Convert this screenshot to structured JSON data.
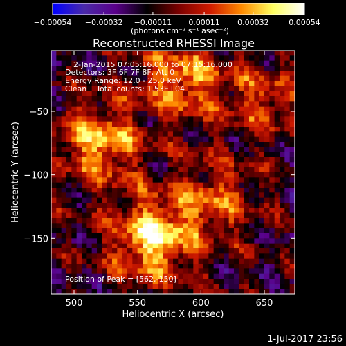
{
  "chart_data": {
    "type": "heatmap",
    "title": "Reconstructed RHESSI Image",
    "xlabel": "Heliocentric X (arcsec)",
    "ylabel": "Heliocentric Y (arcsec)",
    "xlim": [
      482,
      674
    ],
    "ylim": [
      -194,
      -2
    ],
    "x_ticks": [
      500,
      550,
      600,
      650
    ],
    "x_tick_labels": [
      "500",
      "550",
      "600",
      "650"
    ],
    "y_ticks": [
      -50,
      -100,
      -150
    ],
    "y_tick_labels": [
      "−50",
      "−100",
      "−150"
    ],
    "colorbar": {
      "ticks": [
        -0.00054,
        -0.00032,
        -0.00011,
        0.00011,
        0.00032,
        0.00054
      ],
      "tick_labels": [
        "−0.00054",
        "−0.00032",
        "−0.00011",
        "0.00011",
        "0.00032",
        "0.00054"
      ],
      "unit_label": "(photons cm⁻² s⁻¹ asec⁻²)",
      "range": [
        -0.00054,
        0.00054
      ],
      "colormap": [
        "#0000ff",
        "#4a2aa8",
        "#5a008a",
        "#000000",
        "#7a0000",
        "#d01a00",
        "#ff8a00",
        "#ffff60",
        "#ffffff"
      ]
    },
    "annotations": [
      "2-Jan-2015 07:05:16.000 to 07:15:16.000",
      "Detectors: 3F 6F 7F 8F, Att 0",
      "Energy Range: 12.0 - 25.0 keV",
      "Clean    Total counts: 1.53E+04"
    ],
    "peak_label": "Position of Peak = [562,-150]",
    "peak": [
      562,
      -150
    ],
    "bright_features": [
      {
        "x": 562,
        "y": -150,
        "value": 0.00054
      },
      {
        "x": 520,
        "y": -75,
        "value": 0.00045
      },
      {
        "x": 585,
        "y": -25,
        "value": 0.0004
      },
      {
        "x": 650,
        "y": -40,
        "value": 0.00025
      },
      {
        "x": 610,
        "y": -120,
        "value": 0.0003
      }
    ],
    "footer": "1-Jul-2017 23:56"
  }
}
